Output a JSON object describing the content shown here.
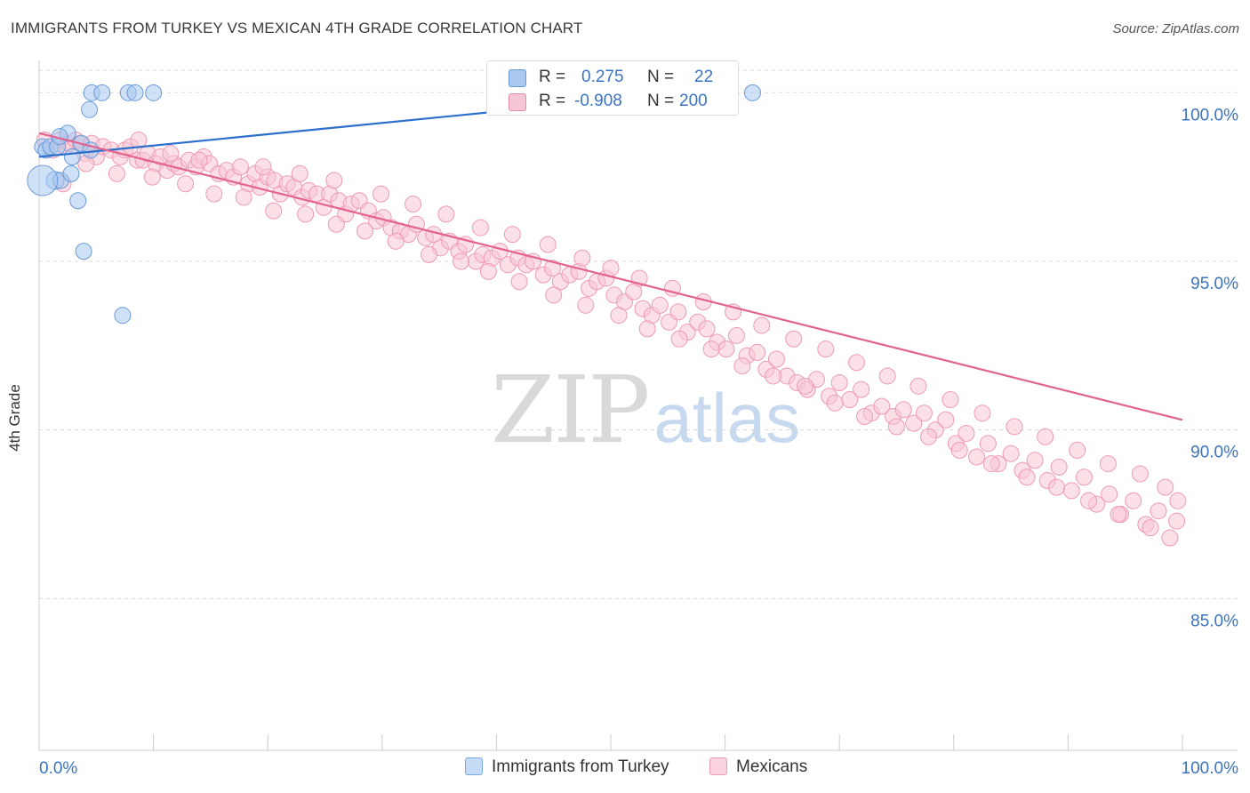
{
  "title": "IMMIGRANTS FROM TURKEY VS MEXICAN 4TH GRADE CORRELATION CHART",
  "source": "Source: ZipAtlas.com",
  "watermark": {
    "zip": "ZIP",
    "atlas": "atlas"
  },
  "legend_top": [
    {
      "r_label": "R =",
      "r_value": "0.275",
      "n_label": "N =",
      "n_value": "22",
      "color": "#a8c8f0",
      "border": "#6a9ad6"
    },
    {
      "r_label": "R =",
      "r_value": "-0.908",
      "n_label": "N =",
      "n_value": "200",
      "color": "#f7c6d6",
      "border": "#e88aab"
    }
  ],
  "legend_bottom": [
    {
      "label": "Immigrants from Turkey",
      "color": "#c6dbf5",
      "border": "#7aa8e0"
    },
    {
      "label": "Mexicans",
      "color": "#fad3df",
      "border": "#ee9ab5"
    }
  ],
  "chart_data": {
    "type": "scatter",
    "title": "IMMIGRANTS FROM TURKEY VS MEXICAN 4TH GRADE CORRELATION CHART",
    "xlabel": "",
    "ylabel": "4th Grade",
    "xlim": [
      0,
      100
    ],
    "ylim": [
      80.5,
      100.8
    ],
    "x_tick_labels": [
      "0.0%",
      "100.0%"
    ],
    "y_ticks": [
      85,
      90,
      95,
      100
    ],
    "y_tick_labels": [
      "85.0%",
      "90.0%",
      "95.0%",
      "100.0%"
    ],
    "grid": "horizontal dashed",
    "legend_position": "top-center",
    "series": [
      {
        "name": "Immigrants from Turkey",
        "color": "#6a9ad6",
        "fill": "#a8c8f0",
        "trend": {
          "x": [
            0,
            56.7
          ],
          "y": [
            98.1,
            100.0
          ],
          "color": "#2b6fcc"
        },
        "points": [
          [
            0.3,
            98.4
          ],
          [
            0.6,
            98.3
          ],
          [
            1.0,
            98.4
          ],
          [
            1.6,
            98.4
          ],
          [
            2.5,
            98.8
          ],
          [
            3.7,
            98.5
          ],
          [
            1.8,
            98.7
          ],
          [
            2.9,
            98.1
          ],
          [
            4.5,
            98.3
          ],
          [
            1.4,
            97.4
          ],
          [
            1.9,
            97.4
          ],
          [
            2.8,
            97.6
          ],
          [
            3.4,
            96.8
          ],
          [
            4.4,
            99.5
          ],
          [
            4.6,
            100.0
          ],
          [
            5.5,
            100.0
          ],
          [
            7.8,
            100.0
          ],
          [
            8.4,
            100.0
          ],
          [
            10.0,
            100.0
          ],
          [
            3.9,
            95.3
          ],
          [
            7.3,
            93.4
          ],
          [
            62.4,
            100.0
          ]
        ]
      },
      {
        "name": "Mexicans",
        "color": "#ee9ab5",
        "fill": "#f7c6d6",
        "trend": {
          "x": [
            0,
            100
          ],
          "y": [
            98.8,
            90.3
          ],
          "color": "#e3638e"
        },
        "points": [
          [
            0.5,
            98.6
          ],
          [
            1.2,
            98.3
          ],
          [
            1.8,
            98.6
          ],
          [
            2.3,
            98.4
          ],
          [
            2.6,
            98.5
          ],
          [
            3.2,
            98.6
          ],
          [
            3.6,
            98.5
          ],
          [
            4.0,
            98.2
          ],
          [
            4.6,
            98.5
          ],
          [
            5.0,
            98.1
          ],
          [
            5.6,
            98.4
          ],
          [
            6.3,
            98.3
          ],
          [
            7.1,
            98.1
          ],
          [
            7.5,
            98.3
          ],
          [
            8.0,
            98.4
          ],
          [
            8.6,
            98.0
          ],
          [
            9.1,
            98.0
          ],
          [
            9.5,
            98.2
          ],
          [
            10.2,
            97.9
          ],
          [
            10.6,
            98.1
          ],
          [
            11.2,
            97.7
          ],
          [
            11.8,
            97.9
          ],
          [
            12.2,
            97.8
          ],
          [
            13.1,
            98.0
          ],
          [
            13.7,
            97.8
          ],
          [
            14.4,
            98.1
          ],
          [
            14.9,
            97.9
          ],
          [
            15.7,
            97.6
          ],
          [
            16.4,
            97.7
          ],
          [
            17.0,
            97.5
          ],
          [
            17.6,
            97.8
          ],
          [
            18.3,
            97.3
          ],
          [
            18.9,
            97.6
          ],
          [
            19.3,
            97.2
          ],
          [
            20.0,
            97.5
          ],
          [
            20.6,
            97.4
          ],
          [
            21.1,
            97.0
          ],
          [
            21.7,
            97.3
          ],
          [
            22.3,
            97.2
          ],
          [
            23.0,
            96.9
          ],
          [
            23.6,
            97.1
          ],
          [
            24.3,
            97.0
          ],
          [
            24.9,
            96.6
          ],
          [
            25.4,
            97.0
          ],
          [
            26.2,
            96.8
          ],
          [
            26.8,
            96.4
          ],
          [
            27.3,
            96.7
          ],
          [
            28.0,
            96.8
          ],
          [
            28.8,
            96.5
          ],
          [
            29.5,
            96.2
          ],
          [
            30.1,
            96.3
          ],
          [
            30.8,
            96.0
          ],
          [
            31.6,
            95.9
          ],
          [
            32.3,
            95.8
          ],
          [
            33.0,
            96.1
          ],
          [
            33.8,
            95.7
          ],
          [
            34.5,
            95.8
          ],
          [
            35.1,
            95.4
          ],
          [
            35.9,
            95.6
          ],
          [
            36.7,
            95.3
          ],
          [
            37.3,
            95.5
          ],
          [
            38.2,
            95.0
          ],
          [
            38.8,
            95.2
          ],
          [
            39.6,
            95.1
          ],
          [
            40.3,
            95.3
          ],
          [
            41.0,
            94.9
          ],
          [
            41.9,
            95.1
          ],
          [
            42.6,
            94.9
          ],
          [
            43.2,
            95.0
          ],
          [
            44.1,
            94.6
          ],
          [
            44.9,
            94.8
          ],
          [
            45.6,
            94.4
          ],
          [
            46.4,
            94.6
          ],
          [
            47.2,
            94.7
          ],
          [
            48.1,
            94.2
          ],
          [
            48.8,
            94.4
          ],
          [
            49.6,
            94.5
          ],
          [
            50.3,
            94.0
          ],
          [
            51.2,
            93.8
          ],
          [
            52.0,
            94.1
          ],
          [
            52.8,
            93.6
          ],
          [
            53.6,
            93.4
          ],
          [
            54.3,
            93.7
          ],
          [
            55.1,
            93.2
          ],
          [
            55.9,
            93.5
          ],
          [
            56.7,
            92.9
          ],
          [
            57.6,
            93.2
          ],
          [
            58.4,
            93.0
          ],
          [
            59.3,
            92.6
          ],
          [
            60.1,
            92.4
          ],
          [
            61.0,
            92.8
          ],
          [
            61.9,
            92.2
          ],
          [
            62.8,
            92.3
          ],
          [
            63.6,
            91.8
          ],
          [
            64.5,
            92.1
          ],
          [
            65.4,
            91.6
          ],
          [
            66.3,
            91.4
          ],
          [
            67.2,
            91.2
          ],
          [
            68.0,
            91.5
          ],
          [
            69.1,
            91.0
          ],
          [
            70.0,
            91.4
          ],
          [
            70.9,
            90.9
          ],
          [
            71.9,
            91.2
          ],
          [
            72.8,
            90.5
          ],
          [
            73.7,
            90.7
          ],
          [
            74.7,
            90.4
          ],
          [
            75.6,
            90.6
          ],
          [
            76.5,
            90.2
          ],
          [
            77.4,
            90.5
          ],
          [
            78.4,
            90.0
          ],
          [
            79.3,
            90.3
          ],
          [
            80.2,
            89.6
          ],
          [
            81.1,
            89.9
          ],
          [
            82.0,
            89.2
          ],
          [
            83.0,
            89.6
          ],
          [
            83.9,
            89.0
          ],
          [
            85.0,
            89.3
          ],
          [
            86.0,
            88.8
          ],
          [
            87.1,
            89.1
          ],
          [
            88.2,
            88.5
          ],
          [
            89.2,
            88.9
          ],
          [
            90.3,
            88.2
          ],
          [
            91.4,
            88.6
          ],
          [
            92.5,
            87.8
          ],
          [
            93.6,
            88.1
          ],
          [
            94.6,
            87.5
          ],
          [
            95.7,
            87.9
          ],
          [
            96.8,
            87.2
          ],
          [
            97.9,
            87.6
          ],
          [
            98.9,
            86.8
          ],
          [
            99.5,
            87.3
          ],
          [
            2.1,
            97.3
          ],
          [
            4.1,
            97.9
          ],
          [
            6.8,
            97.6
          ],
          [
            9.9,
            97.5
          ],
          [
            12.8,
            97.3
          ],
          [
            15.3,
            97.0
          ],
          [
            17.9,
            96.9
          ],
          [
            20.5,
            96.5
          ],
          [
            23.3,
            96.4
          ],
          [
            26.0,
            96.1
          ],
          [
            28.5,
            95.9
          ],
          [
            31.2,
            95.6
          ],
          [
            34.1,
            95.2
          ],
          [
            36.9,
            95.0
          ],
          [
            39.3,
            94.7
          ],
          [
            42.0,
            94.4
          ],
          [
            45.0,
            94.0
          ],
          [
            47.8,
            93.7
          ],
          [
            50.7,
            93.4
          ],
          [
            53.2,
            93.0
          ],
          [
            56.0,
            92.7
          ],
          [
            58.8,
            92.4
          ],
          [
            61.5,
            91.9
          ],
          [
            64.2,
            91.6
          ],
          [
            67.0,
            91.3
          ],
          [
            69.6,
            90.8
          ],
          [
            72.2,
            90.4
          ],
          [
            75.0,
            90.1
          ],
          [
            77.8,
            89.8
          ],
          [
            80.5,
            89.4
          ],
          [
            83.3,
            89.0
          ],
          [
            86.4,
            88.6
          ],
          [
            89.0,
            88.3
          ],
          [
            91.8,
            87.9
          ],
          [
            94.4,
            87.5
          ],
          [
            97.2,
            87.1
          ],
          [
            8.7,
            98.6
          ],
          [
            11.5,
            98.2
          ],
          [
            14.0,
            98.0
          ],
          [
            19.6,
            97.8
          ],
          [
            22.8,
            97.6
          ],
          [
            25.8,
            97.4
          ],
          [
            29.9,
            97.0
          ],
          [
            32.7,
            96.7
          ],
          [
            35.6,
            96.4
          ],
          [
            38.6,
            96.0
          ],
          [
            41.4,
            95.8
          ],
          [
            44.5,
            95.5
          ],
          [
            47.5,
            95.1
          ],
          [
            50.0,
            94.8
          ],
          [
            52.5,
            94.5
          ],
          [
            55.4,
            94.2
          ],
          [
            58.1,
            93.8
          ],
          [
            60.7,
            93.5
          ],
          [
            63.2,
            93.1
          ],
          [
            66.0,
            92.7
          ],
          [
            68.8,
            92.4
          ],
          [
            71.5,
            92.0
          ],
          [
            74.2,
            91.6
          ],
          [
            76.9,
            91.3
          ],
          [
            79.7,
            90.9
          ],
          [
            82.5,
            90.5
          ],
          [
            85.3,
            90.1
          ],
          [
            88.0,
            89.8
          ],
          [
            90.8,
            89.4
          ],
          [
            93.5,
            89.0
          ],
          [
            96.3,
            88.7
          ],
          [
            98.5,
            88.3
          ],
          [
            99.6,
            87.9
          ]
        ]
      }
    ]
  }
}
